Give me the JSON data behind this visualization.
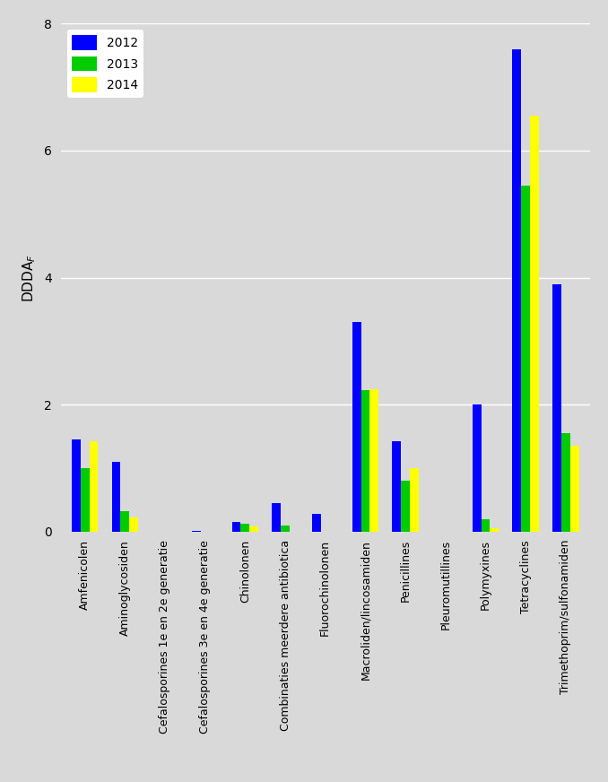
{
  "categories": [
    "Amfenicolen",
    "Aminoglycosiden",
    "Cefalosporines 1e en 2e generatie",
    "Cefalosporines 3e en 4e generatie",
    "Chinolonen",
    "Combinaties meerdere antibiotica",
    "Fluorochinolonen",
    "Macroliden/lincosamiden",
    "Penicillines",
    "Pleuromutillines",
    "Polymyxines",
    "Tetracyclines",
    "Trimethoprim/sulfonamiden"
  ],
  "series": {
    "2012": [
      1.45,
      1.1,
      0.0,
      0.02,
      0.15,
      0.45,
      0.28,
      3.3,
      1.42,
      0.0,
      2.0,
      7.6,
      3.9
    ],
    "2013": [
      1.0,
      0.32,
      0.0,
      0.0,
      0.12,
      0.1,
      0.0,
      2.23,
      0.8,
      0.0,
      0.2,
      5.45,
      1.55
    ],
    "2014": [
      1.42,
      0.22,
      0.0,
      0.0,
      0.08,
      0.0,
      0.0,
      2.25,
      1.0,
      0.0,
      0.05,
      6.55,
      1.35
    ]
  },
  "colors": {
    "2012": "#0000FF",
    "2013": "#00CC00",
    "2014": "#FFFF00"
  },
  "ylim": [
    0,
    8
  ],
  "yticks": [
    0,
    2,
    4,
    6,
    8
  ],
  "background_color": "#D9D9D9",
  "legend_loc": "upper left",
  "bar_width": 0.22,
  "grid_color": "#FFFFFF",
  "ylabel_text": "DDDA$_F$"
}
